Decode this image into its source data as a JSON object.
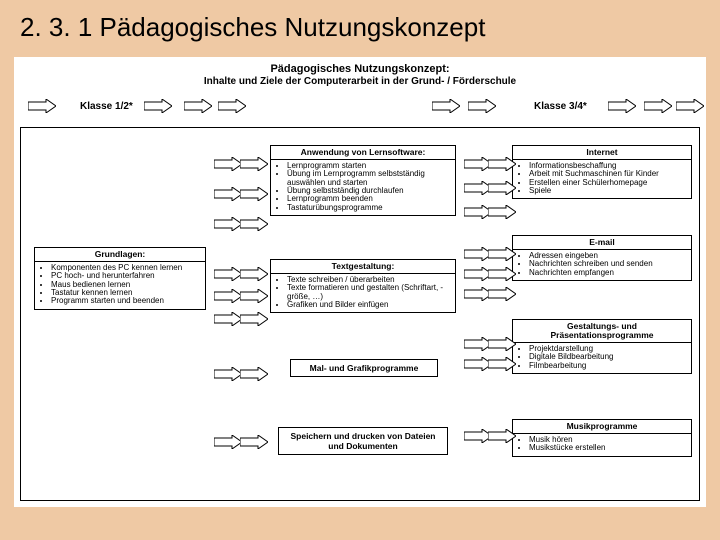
{
  "slide_title": "2. 3. 1 Pädagogisches Nutzungskonzept",
  "header": {
    "line1": "Pädagogisches Nutzungskonzept:",
    "line2": "Inhalte und Ziele der Computerarbeit in der Grund- / Förderschule"
  },
  "klasse_labels": {
    "left": "Klasse 1/2*",
    "right": "Klasse 3/4*"
  },
  "boxes": {
    "grundlagen": {
      "title": "Grundlagen:",
      "items": [
        "Komponenten des PC kennen lernen",
        "PC hoch- und herunterfahren",
        "Maus bedienen lernen",
        "Tastatur kennen lernen",
        "Programm starten und beenden"
      ]
    },
    "lernsoftware": {
      "title": "Anwendung von Lernsoftware:",
      "items": [
        "Lernprogramm starten",
        "Übung im Lernprogramm selbstständig auswählen und starten",
        "Übung selbstständig durchlaufen",
        "Lernprogramm beenden",
        "Tastaturübungsprogramme"
      ]
    },
    "textgestaltung": {
      "title": "Textgestaltung:",
      "items": [
        "Texte schreiben / überarbeiten",
        "Texte formatieren und gestalten (Schriftart, -größe, …)",
        "Grafiken und Bilder einfügen"
      ]
    },
    "malgrafik": {
      "title": "Mal- und\nGrafikprogramme"
    },
    "speichern": {
      "title": "Speichern und drucken von\nDateien und Dokumenten"
    },
    "internet": {
      "title": "Internet",
      "items": [
        "Informationsbeschaffung",
        "Arbeit mit Suchmaschinen für Kinder",
        "Erstellen einer Schülerhomepage",
        "Spiele"
      ]
    },
    "email": {
      "title": "E-mail",
      "items": [
        "Adressen eingeben",
        "Nachrichten schreiben und senden",
        "Nachrichten empfangen"
      ]
    },
    "gestaltung": {
      "title": "Gestaltungs- und\nPräsentationsprogramme",
      "items": [
        "Projektdarstellung",
        "Digitale Bildbearbeitung",
        "Filmbearbeitung"
      ]
    },
    "musik": {
      "title": "Musikprogramme",
      "items": [
        "Musik hören",
        "Musikstücke erstellen"
      ]
    }
  },
  "colors": {
    "bg": "#efc9a4",
    "panel": "#ffffff",
    "ink": "#000000"
  }
}
